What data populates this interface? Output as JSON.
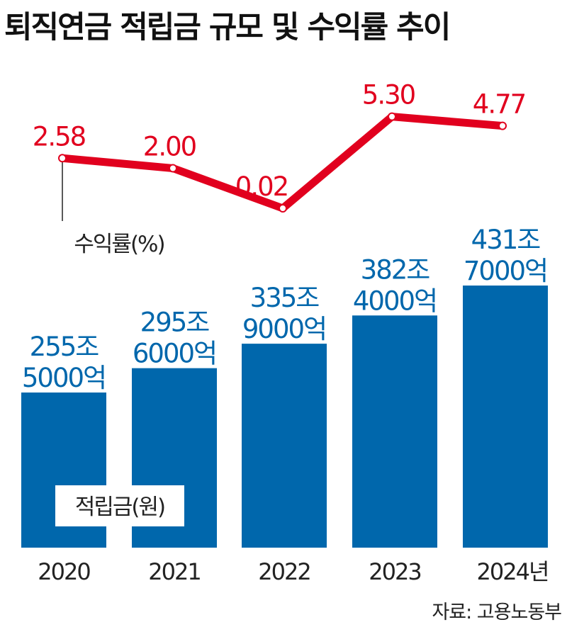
{
  "title": "퇴직연금 적립금 규모 및 수익률 추이",
  "source": "자료: 고용노동부",
  "colors": {
    "bar": "#0067ac",
    "line": "#e1001e",
    "bar_label": "#0067ac",
    "line_label": "#e1001e"
  },
  "chart_data": [
    {
      "type": "bar",
      "name": "적립금(원)",
      "categories": [
        "2020",
        "2021",
        "2022",
        "2023",
        "2024년"
      ],
      "values": [
        255.5,
        295.6,
        335.9,
        382.4,
        431.7
      ],
      "unit": "조원",
      "data_labels": [
        [
          "255조",
          "5000억"
        ],
        [
          "295조",
          "6000억"
        ],
        [
          "335조",
          "9000억"
        ],
        [
          "382조",
          "4000억"
        ],
        [
          "431조",
          "7000억"
        ]
      ],
      "series_label": "적립금(원)"
    },
    {
      "type": "line",
      "name": "수익률(%)",
      "categories": [
        "2020",
        "2021",
        "2022",
        "2023",
        "2024년"
      ],
      "values": [
        2.58,
        2.0,
        0.02,
        5.3,
        4.77
      ],
      "data_labels": [
        "2.58",
        "2.00",
        "0.02",
        "5.30",
        "4.77"
      ],
      "series_label": "수익률(%)"
    }
  ]
}
